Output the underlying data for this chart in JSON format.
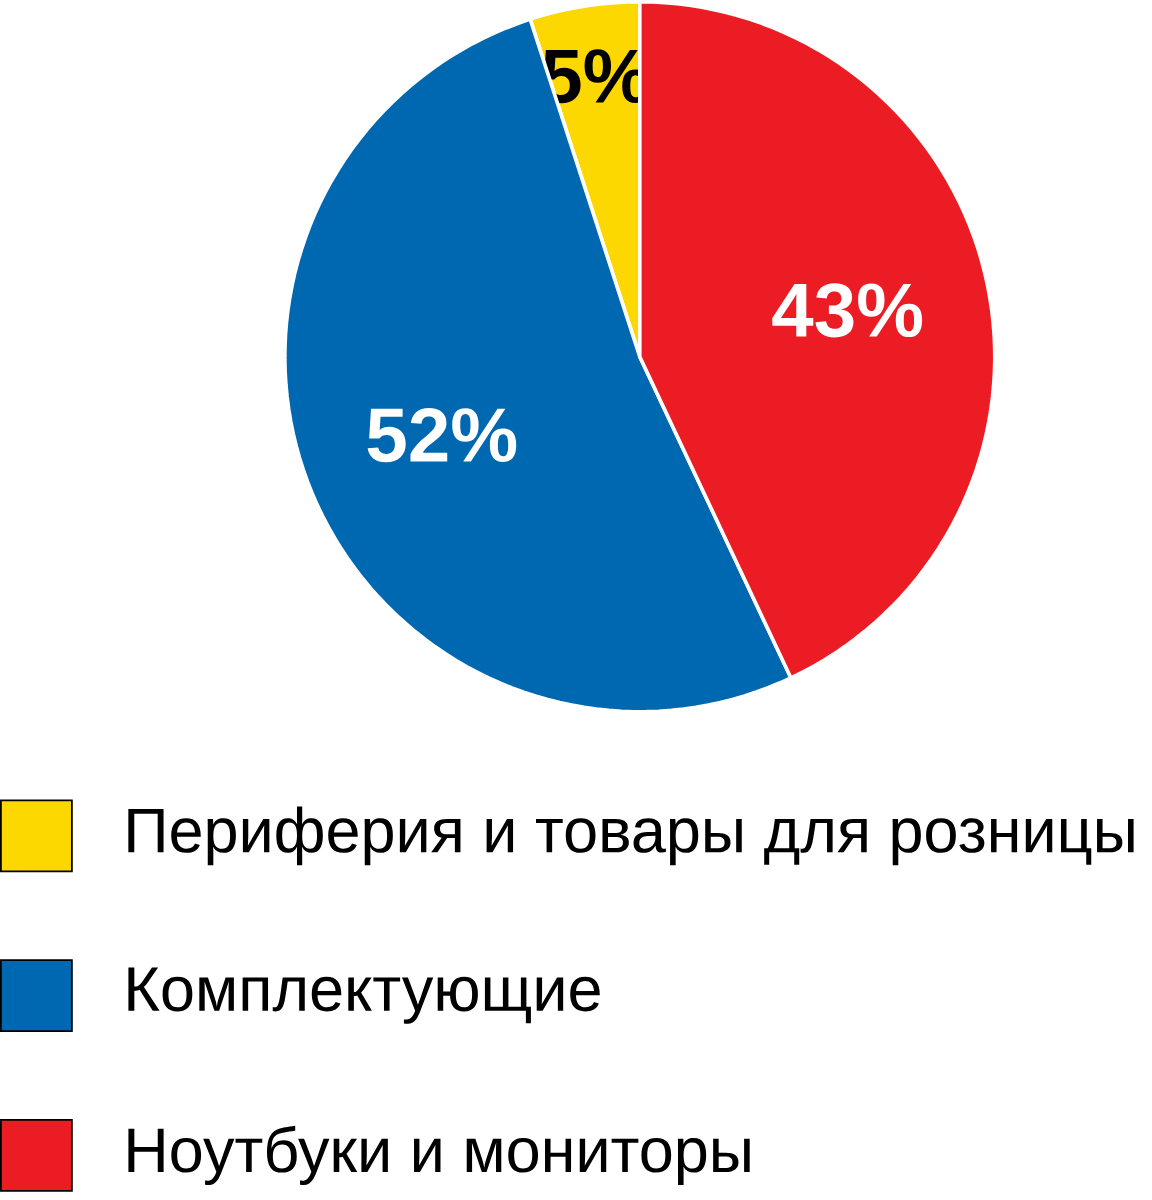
{
  "chart_data": {
    "type": "pie",
    "categories": [
      "Периферия и товары для розницы",
      "Комплектующие",
      "Ноутбуки и мониторы"
    ],
    "values": [
      5,
      52,
      43
    ],
    "colors": [
      "#fcd700",
      "#0067b1",
      "#ec1c24"
    ],
    "value_labels": [
      "5%",
      "52%",
      "43%"
    ],
    "legend": "bottom"
  }
}
